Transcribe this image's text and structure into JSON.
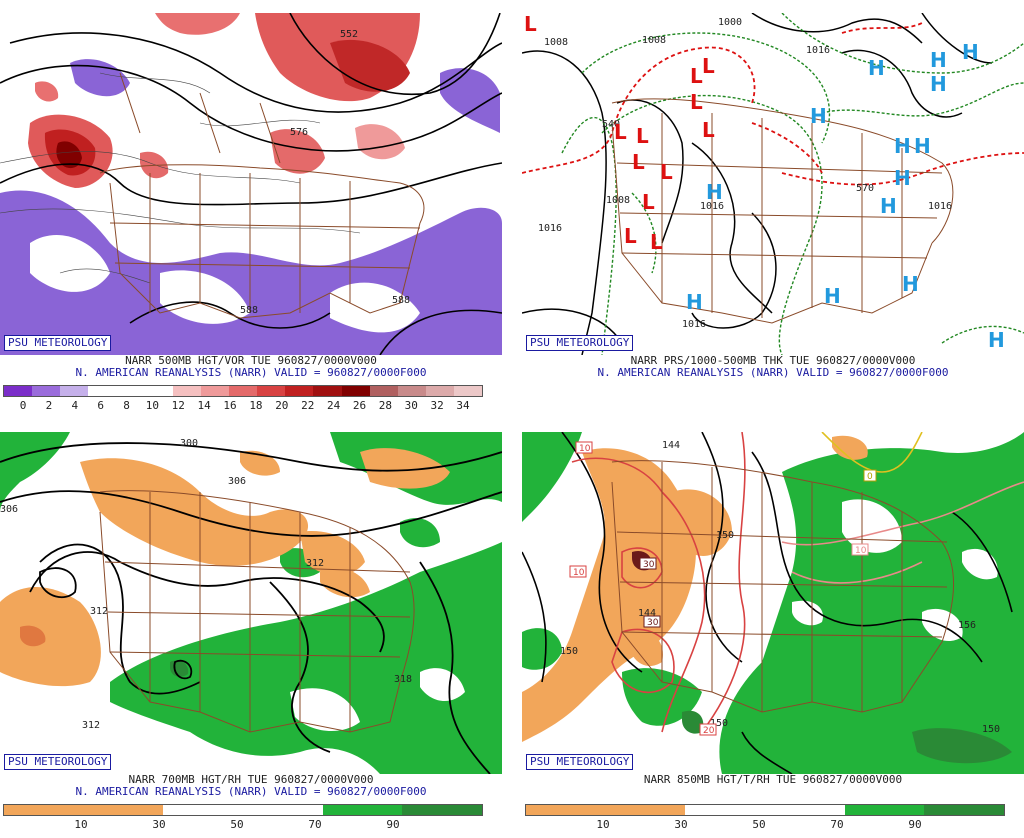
{
  "panels": {
    "p1": {
      "badge": "PSU METEOROLOGY",
      "caption1": "NARR 500MB HGT/VOR TUE 960827/0000V000",
      "caption2": "N. AMERICAN REANALYSIS (NARR) VALID = 960827/0000F000",
      "ticks": [
        "0",
        "2",
        "4",
        "6",
        "8",
        "10",
        "12",
        "14",
        "16",
        "18",
        "20",
        "22",
        "24",
        "26",
        "28",
        "30",
        "32",
        "34"
      ],
      "colors": [
        "#7b2ec9",
        "#9a6cdb",
        "#c5b0ea",
        "#ffffff",
        "#ffffff",
        "#ffffff",
        "#f5c0c0",
        "#ef9a9a",
        "#e46a6a",
        "#d84242",
        "#c02020",
        "#a01010",
        "#800000",
        "#b06060",
        "#c88a8a",
        "#dcaaaa",
        "#ecc8c8"
      ],
      "map_labels": [
        "552",
        "576",
        "588",
        "588"
      ]
    },
    "p2": {
      "badge": "PSU METEOROLOGY",
      "caption1": "NARR PRS/1000-500MB THK TUE 960827/0000V000",
      "caption2": "N. AMERICAN REANALYSIS (NARR) VALID = 960827/0000F000",
      "map_labels": [
        "1008",
        "1008",
        "1000",
        "1016",
        "1016",
        "1016",
        "1016",
        "1016",
        "570",
        "540",
        "1008"
      ],
      "low_symbol": "L",
      "high_symbol": "H"
    },
    "p3": {
      "badge": "PSU METEOROLOGY",
      "caption1": "NARR 700MB HGT/RH TUE 960827/0000V000",
      "caption2": "N. AMERICAN REANALYSIS (NARR) VALID = 960827/0000F000",
      "ticks": [
        "10",
        "30",
        "50",
        "70",
        "90"
      ],
      "map_labels": [
        "300",
        "306",
        "306",
        "312",
        "312",
        "312",
        "318"
      ]
    },
    "p4": {
      "badge": "PSU METEOROLOGY",
      "caption1": "NARR 850MB HGT/T/RH TUE 960827/0000V000",
      "ticks": [
        "10",
        "30",
        "50",
        "70",
        "90"
      ],
      "map_labels": [
        "144",
        "150",
        "150",
        "150",
        "156",
        "144",
        "150"
      ],
      "temp_labels": [
        "10",
        "10",
        "30",
        "30",
        "20",
        "10",
        "0"
      ]
    }
  },
  "colors": {
    "vort_purple": "#8a64d6",
    "vort_red": "#e05a5a",
    "vort_dark": "#8b1010",
    "rh_orange": "#f2a65a",
    "rh_green": "#22b33a",
    "rh_dkgreen": "#2a8a36",
    "state_lines": "#8a4b2a",
    "low_red": "#dd1111",
    "high_cyan": "#2299dd",
    "isobar_green": "#228822",
    "thk_red": "#dd1111",
    "navy": "#1a1aa0"
  }
}
